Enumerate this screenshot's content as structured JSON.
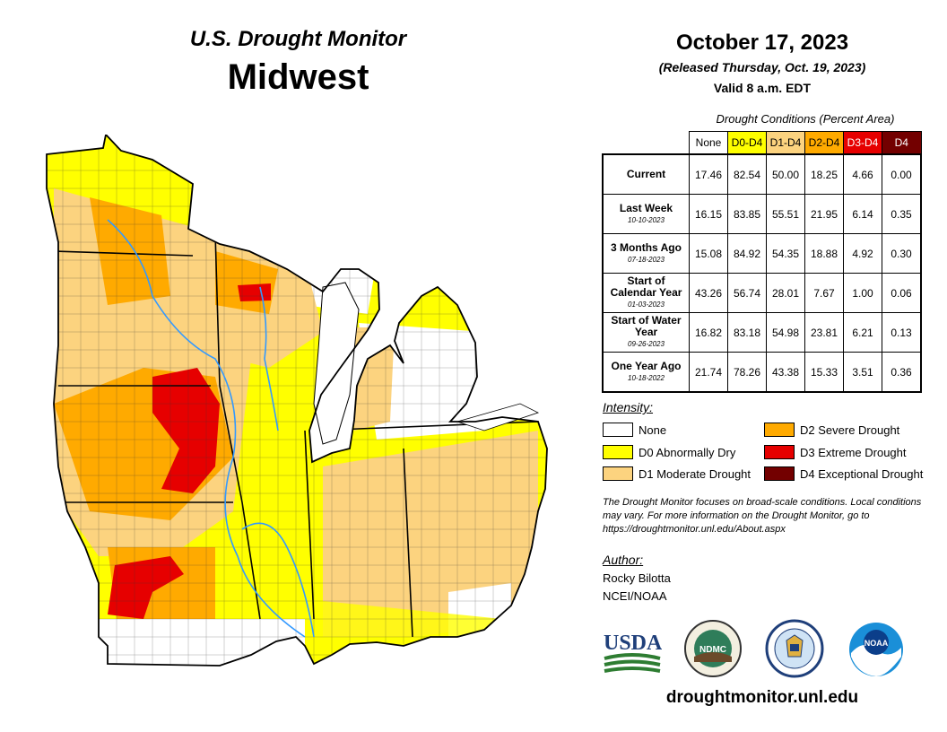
{
  "header": {
    "title": "U.S. Drought Monitor",
    "region": "Midwest",
    "date": "October 17, 2023",
    "released": "(Released Thursday, Oct. 19, 2023)",
    "valid": "Valid 8 a.m. EDT"
  },
  "conditions": {
    "caption": "Drought Conditions (Percent Area)",
    "columns": [
      "None",
      "D0-D4",
      "D1-D4",
      "D2-D4",
      "D3-D4",
      "D4"
    ],
    "column_colors": [
      "#ffffff",
      "#ffff00",
      "#fcd37f",
      "#ffaa00",
      "#e60000",
      "#730000"
    ],
    "rows": [
      {
        "label": "Current",
        "date": "",
        "values": [
          "17.46",
          "82.54",
          "50.00",
          "18.25",
          "4.66",
          "0.00"
        ]
      },
      {
        "label": "Last Week",
        "date": "10-10-2023",
        "values": [
          "16.15",
          "83.85",
          "55.51",
          "21.95",
          "6.14",
          "0.35"
        ]
      },
      {
        "label": "3 Months Ago",
        "date": "07-18-2023",
        "values": [
          "15.08",
          "84.92",
          "54.35",
          "18.88",
          "4.92",
          "0.30"
        ]
      },
      {
        "label": "Start of Calendar Year",
        "date": "01-03-2023",
        "values": [
          "43.26",
          "56.74",
          "28.01",
          "7.67",
          "1.00",
          "0.06"
        ]
      },
      {
        "label": "Start of Water Year",
        "date": "09-26-2023",
        "values": [
          "16.82",
          "83.18",
          "54.98",
          "23.81",
          "6.21",
          "0.13"
        ]
      },
      {
        "label": "One Year Ago",
        "date": "10-18-2022",
        "values": [
          "21.74",
          "78.26",
          "43.38",
          "15.33",
          "3.51",
          "0.36"
        ]
      }
    ]
  },
  "legend": {
    "label": "Intensity:",
    "items": [
      {
        "label": "None",
        "color": "#ffffff"
      },
      {
        "label": "D0 Abnormally Dry",
        "color": "#ffff00"
      },
      {
        "label": "D1 Moderate Drought",
        "color": "#fcd37f"
      },
      {
        "label": "D2 Severe Drought",
        "color": "#ffaa00"
      },
      {
        "label": "D3 Extreme Drought",
        "color": "#e60000"
      },
      {
        "label": "D4 Exceptional Drought",
        "color": "#730000"
      }
    ]
  },
  "note": "The Drought Monitor focuses on broad-scale conditions. Local conditions may vary. For more information on the Drought Monitor, go to https://droughtmonitor.unl.edu/About.aspx",
  "author": {
    "label": "Author:",
    "name": "Rocky Bilotta",
    "org": "NCEI/NOAA"
  },
  "logos": {
    "usda": "USDA",
    "ndmc": "NDMC",
    "usda_icon": "usda-logo",
    "ndmc_icon": "ndmc-seal",
    "doc_icon": "commerce-seal",
    "noaa": "NOAA"
  },
  "website": "droughtmonitor.unl.edu"
}
